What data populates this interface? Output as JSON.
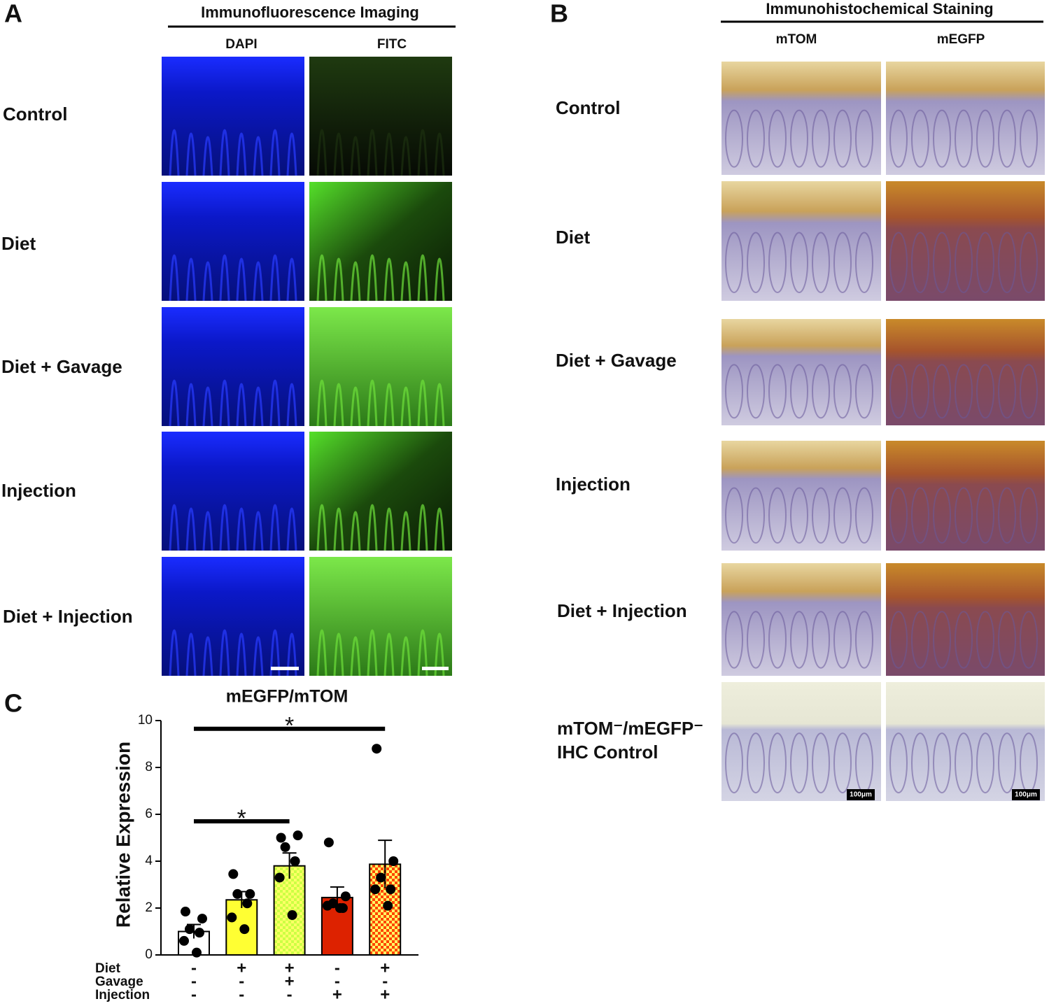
{
  "panel_a": {
    "label": "A",
    "title": "Immunofluorescence Imaging",
    "columns": [
      "DAPI",
      "FITC"
    ],
    "rows": [
      "Control",
      "Diet",
      "Diet + Gavage",
      "Injection",
      "Diet + Injection"
    ]
  },
  "panel_b": {
    "label": "B",
    "title": "Immunohistochemical Staining",
    "columns": [
      "mTOM",
      "mEGFP"
    ],
    "rows": [
      "Control",
      "Diet",
      "Diet + Gavage",
      "Injection",
      "Diet + Injection"
    ],
    "control_label": [
      "mTOM⁻/mEGFP⁻",
      "IHC Control"
    ],
    "scale_bar": "100μm"
  },
  "panel_c": {
    "label": "C"
  },
  "chart_data": {
    "type": "bar",
    "title": "mEGFP/mTOM",
    "ylabel": "Relative Expression",
    "values": [
      1.0,
      2.35,
      3.8,
      2.45,
      3.87
    ],
    "errors": [
      0.3,
      0.35,
      0.55,
      0.45,
      1.02
    ],
    "points": [
      [
        1.85,
        1.55,
        1.1,
        0.95,
        0.6,
        0.1
      ],
      [
        3.45,
        2.6,
        2.6,
        2.2,
        1.6,
        1.1
      ],
      [
        5.0,
        5.1,
        4.6,
        4.0,
        3.3,
        1.7
      ],
      [
        4.8,
        2.5,
        2.2,
        2.0,
        2.1,
        2.0
      ],
      [
        8.8,
        4.0,
        3.3,
        2.8,
        2.8,
        2.1
      ]
    ],
    "colors": [
      "#ffffff",
      "#ffff33",
      "#ccff44",
      "#dd2200",
      "#ff4400"
    ],
    "hatch": [
      false,
      false,
      true,
      false,
      true
    ],
    "ylim": [
      0,
      10
    ],
    "yticks": [
      0,
      2,
      4,
      6,
      8,
      10
    ],
    "significance": [
      {
        "from": 0,
        "to": 2,
        "y": 5.7,
        "label": "*"
      },
      {
        "from": 0,
        "to": 4,
        "y": 9.65,
        "label": "*"
      }
    ],
    "conditions": [
      {
        "name": "Diet",
        "signs": [
          "-",
          "+",
          "+",
          "-",
          "+"
        ]
      },
      {
        "name": "Gavage",
        "signs": [
          "-",
          "-",
          "+",
          "-",
          "-"
        ]
      },
      {
        "name": "Injection",
        "signs": [
          "-",
          "-",
          "-",
          "+",
          "+"
        ]
      }
    ]
  }
}
